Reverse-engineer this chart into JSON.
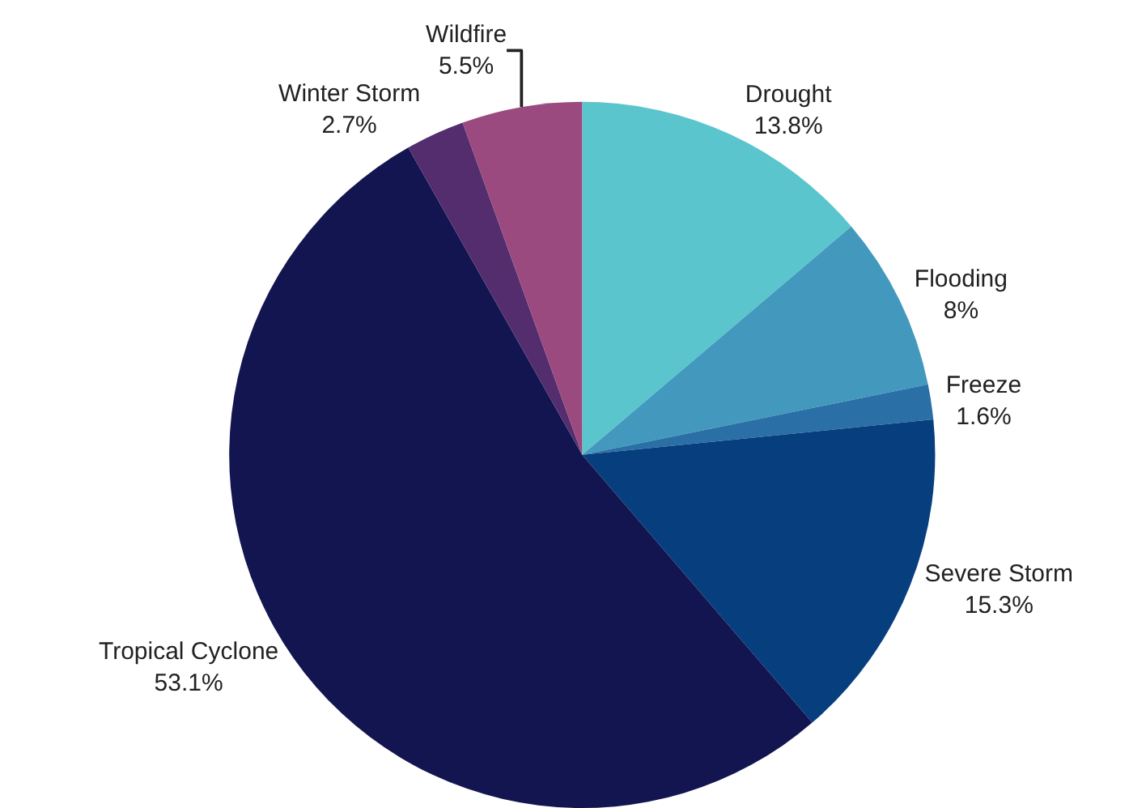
{
  "chart_data": {
    "type": "pie",
    "categories": [
      "Drought",
      "Flooding",
      "Freeze",
      "Severe Storm",
      "Tropical Cyclone",
      "Winter Storm",
      "Wildfire"
    ],
    "values": [
      13.8,
      8,
      1.6,
      15.3,
      53.1,
      2.7,
      5.5
    ],
    "value_labels": [
      "13.8%",
      "8%",
      "1.6%",
      "15.3%",
      "53.1%",
      "2.7%",
      "5.5%"
    ],
    "colors": [
      "#5bc5ce",
      "#4299bd",
      "#2a6fa6",
      "#073f7e",
      "#131550",
      "#532d6e",
      "#9a4a7e"
    ],
    "legend": false
  }
}
